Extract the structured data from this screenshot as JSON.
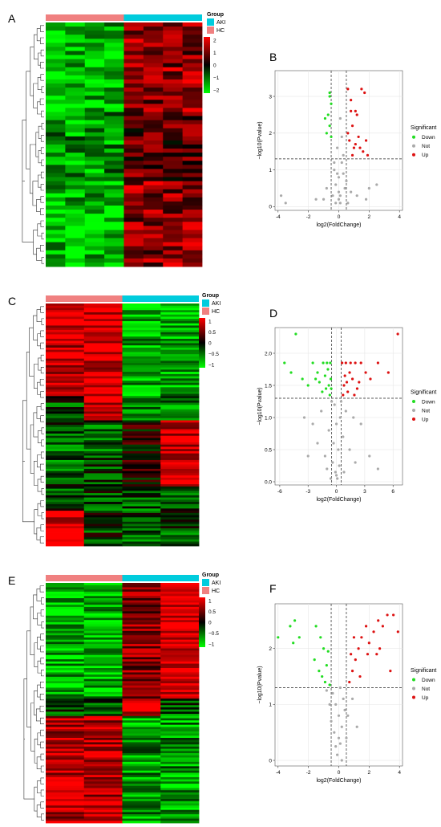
{
  "colors": {
    "akt": "#00CCDD",
    "hc": "#F08080",
    "heat_high": "#FF0000",
    "heat_mid": "#000000",
    "heat_low": "#00FF00",
    "down": "#22DD22",
    "not": "#AAAAAA",
    "up": "#DD1111",
    "panel_bg": "#FFFFFF",
    "grid": "#E6E6E6"
  },
  "panels": [
    {
      "letter": "A",
      "heatmap": {
        "legend_title": "Group",
        "groups": [
          "AKI",
          "HC"
        ],
        "scale_ticks": [
          "2",
          "1",
          "0",
          "−1",
          "−2"
        ],
        "scale_range": [
          -2,
          2
        ],
        "n_hc": 4,
        "n_aki": 4,
        "n_rows": 60
      }
    },
    {
      "letter": "B",
      "volcano": {
        "xlabel": "log2(FoldChange)",
        "ylabel": "−log10(Pvalue)",
        "xticks": [
          -4,
          -2,
          0,
          2,
          4
        ],
        "yticks": [
          0,
          1,
          2,
          3
        ],
        "xlim": [
          -4.2,
          4.2
        ],
        "ylim": [
          -0.1,
          3.7
        ],
        "vlines": [
          -0.5,
          0.5
        ],
        "hline": 1.3,
        "legend_title": "Significant",
        "legend_labels": [
          "Down",
          "Not",
          "Up"
        ]
      }
    },
    {
      "letter": "C",
      "heatmap": {
        "legend_title": "Group",
        "groups": [
          "AKI",
          "HC"
        ],
        "scale_ticks": [
          "1",
          "0.5",
          "0",
          "−0.5",
          "−1"
        ],
        "scale_range": [
          -1,
          1
        ],
        "n_hc": 2,
        "n_aki": 2,
        "n_rows": 110
      }
    },
    {
      "letter": "D",
      "volcano": {
        "xlabel": "log2(FoldChange)",
        "ylabel": "−log10(Pvalue)",
        "xticks": [
          -6,
          -3,
          0,
          3,
          6
        ],
        "yticks": [
          "0.0",
          "0.5",
          "1.0",
          "1.5",
          "2.0"
        ],
        "xlim": [
          -6.5,
          7
        ],
        "ylim": [
          -0.05,
          2.4
        ],
        "vlines": [
          -0.5,
          0.5
        ],
        "hline": 1.3,
        "legend_title": "Significant",
        "legend_labels": [
          "Down",
          "Not",
          "Up"
        ]
      }
    },
    {
      "letter": "E",
      "heatmap": {
        "legend_title": "Group",
        "groups": [
          "AKI",
          "HC"
        ],
        "scale_ticks": [
          "1",
          "0.5",
          "0",
          "−0.5",
          "−1"
        ],
        "scale_range": [
          -1,
          1
        ],
        "n_hc": 2,
        "n_aki": 2,
        "n_rows": 110
      }
    },
    {
      "letter": "F",
      "volcano": {
        "xlabel": "log2(FoldChange)",
        "ylabel": "−log10(Pvalue)",
        "xticks": [
          -4,
          -2,
          0,
          2,
          4
        ],
        "yticks": [
          0,
          1,
          2
        ],
        "xlim": [
          -4.2,
          4.2
        ],
        "ylim": [
          -0.1,
          2.8
        ],
        "vlines": [
          -0.5,
          0.5
        ],
        "hline": 1.3,
        "legend_title": "Significant",
        "legend_labels": [
          "Down",
          "Not",
          "Up"
        ]
      }
    }
  ],
  "chart_data": [
    {
      "panel": "A",
      "type": "heatmap",
      "groups": [
        "HC",
        "HC",
        "HC",
        "HC",
        "AKI",
        "AKI",
        "AKI",
        "AKI"
      ],
      "pattern": "HC columns predominantly green (low), AKI columns predominantly red (high)",
      "color_range": [
        -2,
        2
      ]
    },
    {
      "panel": "B",
      "type": "scatter",
      "series": [
        {
          "name": "Down",
          "points": [
            [
              -0.6,
              3.0
            ],
            [
              -0.5,
              2.8
            ],
            [
              -0.7,
              2.5
            ],
            [
              -0.6,
              2.2
            ],
            [
              -0.9,
              2.4
            ],
            [
              -0.5,
              1.9
            ],
            [
              -0.8,
              2.0
            ],
            [
              -0.6,
              3.1
            ]
          ]
        },
        {
          "name": "Not",
          "points": [
            [
              -3.8,
              0.3
            ],
            [
              -3.5,
              0.1
            ],
            [
              -1.5,
              0.2
            ],
            [
              -0.8,
              0.5
            ],
            [
              -0.3,
              1.0
            ],
            [
              0.0,
              0.8
            ],
            [
              0.2,
              1.2
            ],
            [
              -0.2,
              0.6
            ],
            [
              0.1,
              0.3
            ],
            [
              0.3,
              0.9
            ],
            [
              0.5,
              0.7
            ],
            [
              0.8,
              0.4
            ],
            [
              1.2,
              0.3
            ],
            [
              2.0,
              0.5
            ],
            [
              2.5,
              0.6
            ],
            [
              1.8,
              0.2
            ],
            [
              -0.1,
              1.6
            ],
            [
              0.2,
              1.9
            ],
            [
              0.1,
              2.4
            ],
            [
              -0.2,
              0.1
            ],
            [
              0.4,
              0.5
            ],
            [
              -0.4,
              0.3
            ],
            [
              -1.0,
              0.2
            ],
            [
              0.0,
              0.2
            ],
            [
              0.0,
              0.4
            ],
            [
              0.1,
              0.1
            ],
            [
              -0.1,
              0.9
            ],
            [
              0.3,
              1.4
            ],
            [
              -0.3,
              1.2
            ],
            [
              0.6,
              0.1
            ]
          ]
        },
        {
          "name": "Up",
          "points": [
            [
              0.6,
              3.2
            ],
            [
              0.8,
              2.9
            ],
            [
              1.1,
              2.6
            ],
            [
              1.5,
              3.2
            ],
            [
              1.7,
              3.1
            ],
            [
              0.9,
              2.2
            ],
            [
              1.3,
              1.9
            ],
            [
              1.0,
              1.6
            ],
            [
              1.6,
              1.5
            ],
            [
              1.9,
              1.4
            ],
            [
              0.7,
              1.8
            ],
            [
              1.2,
              2.5
            ],
            [
              0.6,
              2.0
            ],
            [
              1.4,
              1.6
            ],
            [
              1.8,
              1.8
            ],
            [
              0.8,
              2.6
            ],
            [
              1.1,
              1.7
            ],
            [
              0.9,
              1.4
            ]
          ]
        }
      ],
      "xlabel": "log2(FoldChange)",
      "ylabel": "−log10(Pvalue)",
      "xlim": [
        -4.2,
        4.2
      ],
      "ylim": [
        -0.1,
        3.7
      ]
    },
    {
      "panel": "C",
      "type": "heatmap",
      "groups": [
        "HC",
        "HC",
        "AKI",
        "AKI"
      ],
      "pattern": "upper rows: HC red, AKI green; lower rows mixed",
      "color_range": [
        -1,
        1
      ]
    },
    {
      "panel": "D",
      "type": "scatter",
      "series": [
        {
          "name": "Down",
          "points": [
            [
              -4.3,
              2.3
            ],
            [
              -5.5,
              1.85
            ],
            [
              -4.8,
              1.7
            ],
            [
              -3.6,
              1.6
            ],
            [
              -3.0,
              1.5
            ],
            [
              -2.5,
              1.85
            ],
            [
              -2.0,
              1.7
            ],
            [
              -1.8,
              1.55
            ],
            [
              -1.5,
              1.4
            ],
            [
              -1.2,
              1.65
            ],
            [
              -1.0,
              1.85
            ],
            [
              -0.8,
              1.5
            ],
            [
              -0.7,
              1.35
            ],
            [
              -0.9,
              1.75
            ],
            [
              -0.6,
              1.6
            ],
            [
              -1.4,
              1.85
            ],
            [
              -1.1,
              1.45
            ],
            [
              -2.2,
              1.6
            ],
            [
              -0.65,
              1.85
            ],
            [
              -0.55,
              1.45
            ]
          ]
        },
        {
          "name": "Not",
          "points": [
            [
              -2.5,
              0.9
            ],
            [
              -2.0,
              0.6
            ],
            [
              -1.6,
              1.1
            ],
            [
              -1.2,
              0.4
            ],
            [
              -0.8,
              0.8
            ],
            [
              -0.4,
              0.3
            ],
            [
              -0.2,
              1.2
            ],
            [
              0.0,
              0.1
            ],
            [
              0.2,
              0.5
            ],
            [
              0.4,
              1.0
            ],
            [
              0.7,
              0.7
            ],
            [
              1.0,
              1.1
            ],
            [
              1.4,
              0.5
            ],
            [
              2.0,
              0.3
            ],
            [
              2.6,
              0.9
            ],
            [
              3.5,
              0.4
            ],
            [
              4.4,
              0.2
            ],
            [
              -3.0,
              0.4
            ],
            [
              -3.4,
              1.0
            ],
            [
              0.1,
              0.05
            ],
            [
              -0.1,
              0.15
            ],
            [
              0.3,
              0.25
            ],
            [
              -0.3,
              0.6
            ],
            [
              0.0,
              0.9
            ],
            [
              0.5,
              1.25
            ],
            [
              -0.5,
              1.25
            ],
            [
              1.8,
              1.0
            ],
            [
              -1.0,
              0.2
            ],
            [
              0.8,
              0.15
            ],
            [
              -0.6,
              0.05
            ]
          ]
        },
        {
          "name": "Up",
          "points": [
            [
              6.5,
              2.3
            ],
            [
              0.6,
              1.85
            ],
            [
              1.0,
              1.85
            ],
            [
              1.5,
              1.85
            ],
            [
              2.0,
              1.85
            ],
            [
              2.6,
              1.85
            ],
            [
              3.1,
              1.7
            ],
            [
              3.6,
              1.6
            ],
            [
              5.5,
              1.7
            ],
            [
              0.8,
              1.5
            ],
            [
              1.2,
              1.4
            ],
            [
              1.7,
              1.6
            ],
            [
              2.2,
              1.45
            ],
            [
              0.7,
              1.35
            ],
            [
              1.4,
              1.7
            ],
            [
              4.4,
              1.85
            ],
            [
              0.9,
              1.65
            ],
            [
              1.9,
              1.35
            ],
            [
              2.4,
              1.55
            ],
            [
              1.1,
              1.55
            ]
          ]
        }
      ],
      "xlabel": "log2(FoldChange)",
      "ylabel": "−log10(Pvalue)",
      "xlim": [
        -6.5,
        7
      ],
      "ylim": [
        -0.05,
        2.4
      ]
    },
    {
      "panel": "E",
      "type": "heatmap",
      "groups": [
        "HC",
        "HC",
        "AKI",
        "AKI"
      ],
      "pattern": "upper rows: HC green, AKI red; lower rows: HC red, AKI green",
      "color_range": [
        -1,
        1
      ]
    },
    {
      "panel": "F",
      "type": "scatter",
      "series": [
        {
          "name": "Down",
          "points": [
            [
              -4.0,
              2.2
            ],
            [
              -3.2,
              2.4
            ],
            [
              -2.6,
              2.2
            ],
            [
              -3.0,
              2.1
            ],
            [
              -2.9,
              2.5
            ],
            [
              -1.5,
              2.4
            ],
            [
              -1.2,
              2.2
            ],
            [
              -1.0,
              2.0
            ],
            [
              -1.6,
              1.8
            ],
            [
              -0.8,
              1.7
            ],
            [
              -1.3,
              1.6
            ],
            [
              -0.9,
              1.4
            ],
            [
              -0.7,
              1.95
            ],
            [
              -1.1,
              1.5
            ],
            [
              -0.6,
              1.35
            ]
          ]
        },
        {
          "name": "Not",
          "points": [
            [
              -0.4,
              1.2
            ],
            [
              -0.2,
              1.0
            ],
            [
              0.0,
              0.8
            ],
            [
              0.2,
              0.6
            ],
            [
              0.3,
              1.1
            ],
            [
              -0.3,
              0.5
            ],
            [
              0.1,
              0.3
            ],
            [
              -0.1,
              0.1
            ],
            [
              0.4,
              0.9
            ],
            [
              0.5,
              0.4
            ],
            [
              -0.5,
              0.7
            ],
            [
              -0.8,
              1.25
            ],
            [
              0.9,
              1.1
            ],
            [
              1.2,
              0.6
            ],
            [
              0.0,
              0.4
            ],
            [
              0.2,
              0.0
            ],
            [
              -0.2,
              0.25
            ],
            [
              0.1,
              1.3
            ],
            [
              -0.6,
              1.0
            ],
            [
              0.6,
              0.8
            ]
          ]
        },
        {
          "name": "Up",
          "points": [
            [
              0.7,
              1.4
            ],
            [
              0.9,
              1.6
            ],
            [
              1.1,
              1.8
            ],
            [
              1.3,
              2.0
            ],
            [
              1.5,
              2.2
            ],
            [
              1.8,
              2.4
            ],
            [
              2.0,
              2.1
            ],
            [
              2.3,
              2.3
            ],
            [
              2.6,
              2.5
            ],
            [
              2.9,
              2.4
            ],
            [
              3.2,
              2.6
            ],
            [
              3.6,
              2.6
            ],
            [
              3.9,
              2.3
            ],
            [
              2.5,
              1.9
            ],
            [
              3.4,
              1.6
            ],
            [
              1.4,
              1.5
            ],
            [
              1.0,
              2.2
            ],
            [
              1.9,
              1.9
            ],
            [
              2.7,
              2.0
            ],
            [
              0.8,
              1.9
            ]
          ]
        }
      ],
      "xlabel": "log2(FoldChange)",
      "ylabel": "−log10(Pvalue)",
      "xlim": [
        -4.2,
        4.2
      ],
      "ylim": [
        -0.1,
        2.8
      ]
    }
  ]
}
